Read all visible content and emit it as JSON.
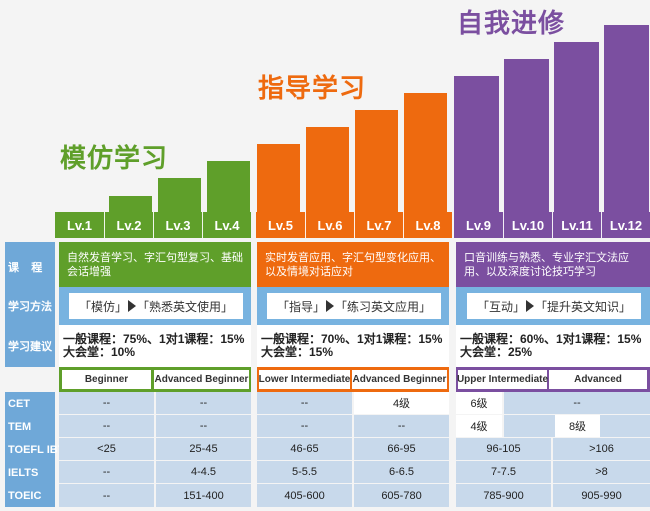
{
  "phases": [
    {
      "title": "模仿学习",
      "color": "#5f9f2a"
    },
    {
      "title": "指导学习",
      "color": "#ee6a0f"
    },
    {
      "title": "自我进修",
      "color": "#7b4fa0"
    }
  ],
  "levels": [
    "Lv.1",
    "Lv.2",
    "Lv.3",
    "Lv.4",
    "Lv.5",
    "Lv.6",
    "Lv.7",
    "Lv.8",
    "Lv.9",
    "Lv.10",
    "Lv.11",
    "Lv.12"
  ],
  "row_headers": {
    "course": "课    程",
    "method": "学习方法",
    "advice": "学习建议",
    "cet": "CET",
    "tem": "TEM",
    "toefl": "TOEFL IBT",
    "ielts": "IELTS",
    "toeic": "TOEIC"
  },
  "course": [
    "自然发音学习、字汇句型复习、基础会话增强",
    "实时发音应用、字汇句型变化应用、以及情境对话应对",
    "口音训练与熟悉、专业字汇文法应用、以及深度讨论技巧学习"
  ],
  "method": [
    {
      "a": "「模仿」",
      "b": "「熟悉英文使用」"
    },
    {
      "a": "「指导」",
      "b": "「练习英文应用」"
    },
    {
      "a": "「互动」",
      "b": "「提升英文知识」"
    }
  ],
  "advice": [
    {
      "line1": "一般课程：75%、1对1课程：15%",
      "line2": "大会堂：10%"
    },
    {
      "line1": "一般课程：70%、1对1课程：15%",
      "line2": "大会堂：15%"
    },
    {
      "line1": "一般课程：60%、1对1课程：15%",
      "line2": "大会堂：25%"
    }
  ],
  "stage_levels": [
    "Beginner",
    "Advanced Beginner",
    "Lower Intermediate",
    "Advanced Beginner",
    "Upper Intermediate",
    "Advanced"
  ],
  "cet": [
    "--",
    "--",
    "--",
    "4级",
    "6级",
    "--"
  ],
  "tem": [
    "--",
    "--",
    "--",
    "--",
    "4级",
    "8级"
  ],
  "toefl": [
    "<25",
    "25-45",
    "46-65",
    "66-95",
    "96-105",
    ">106"
  ],
  "ielts": [
    "--",
    "4-4.5",
    "5-5.5",
    "6-6.5",
    "7-7.5",
    ">8"
  ],
  "toeic": [
    "--",
    "151-400",
    "405-600",
    "605-780",
    "785-900",
    "905-990"
  ]
}
